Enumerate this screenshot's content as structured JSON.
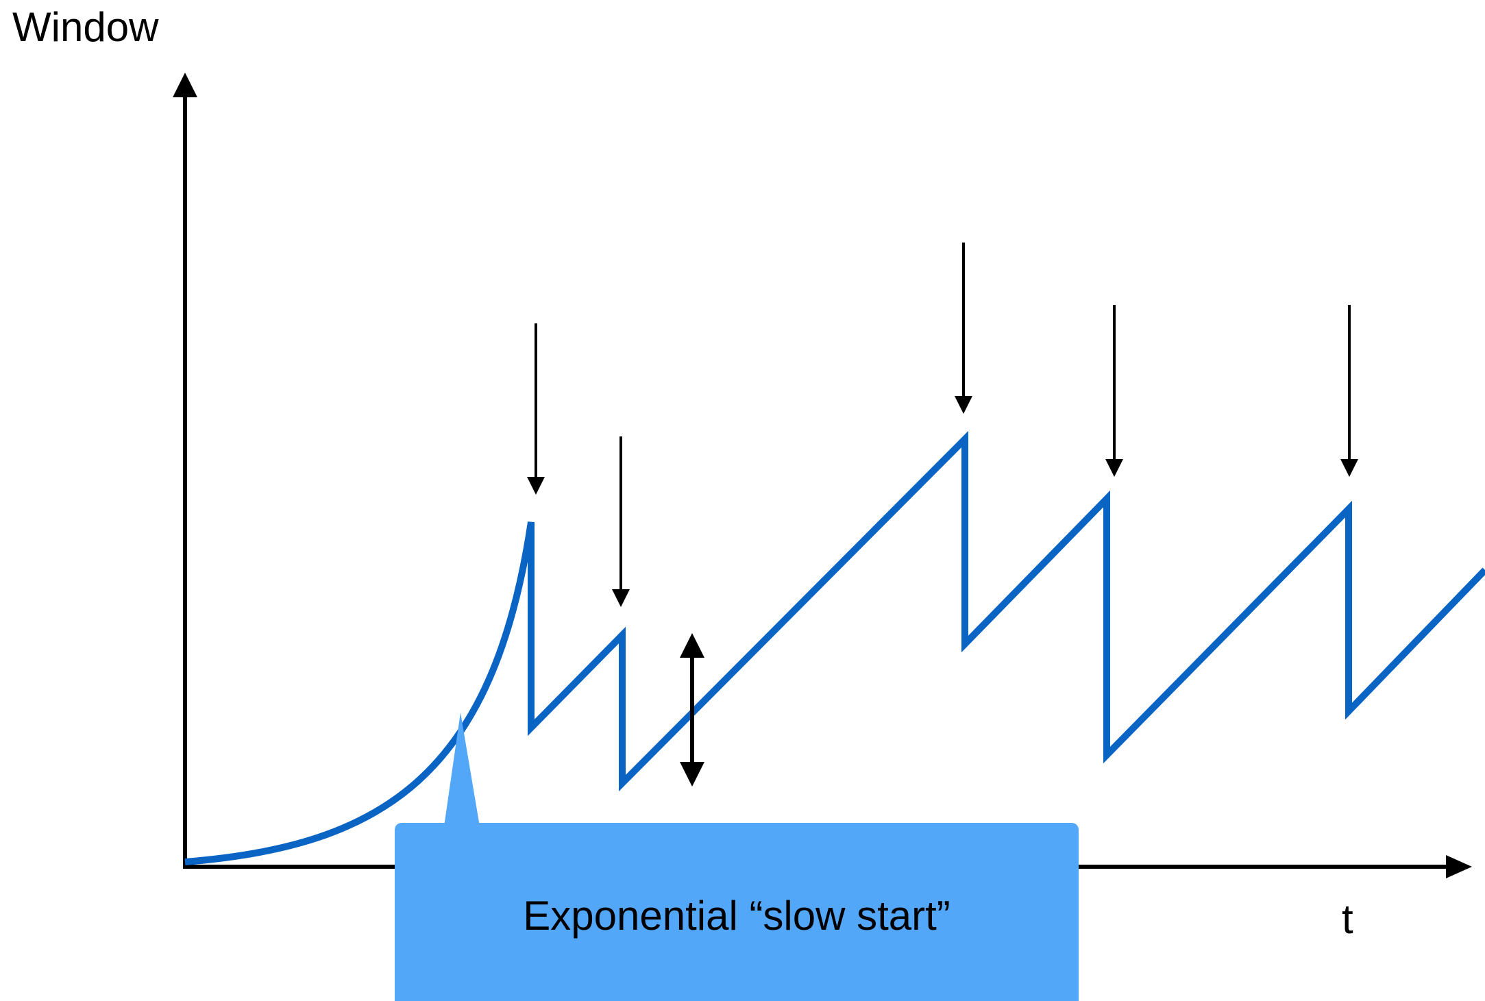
{
  "diagram": {
    "y_axis_label": "Window",
    "x_axis_label": "t",
    "callout": {
      "text": "Exponential “slow start”"
    }
  },
  "colors": {
    "curve": "#0a64c4",
    "callout_fill": "#52a7f9",
    "axis": "#000000"
  }
}
